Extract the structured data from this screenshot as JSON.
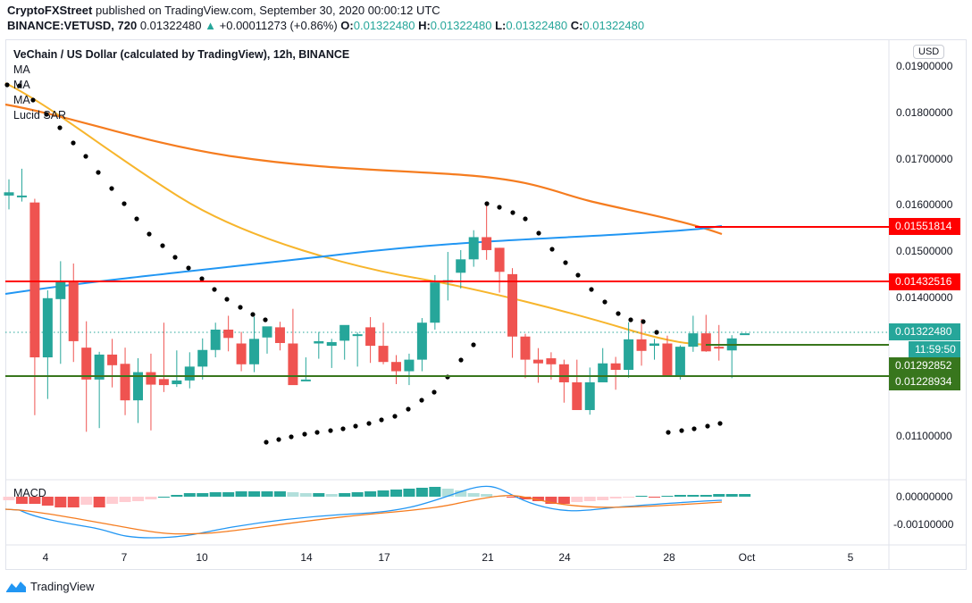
{
  "header": {
    "publisher": "CryptoFXStreet",
    "published_text": "published on TradingView.com, September 30, 2020 00:00:12 UTC",
    "symbol": "BINANCE:VETUSD, 720",
    "last_price": "0.01322480",
    "change": "+0.00011273 (+0.86%)",
    "ohlc": {
      "o_label": "O:",
      "o": "0.01322480",
      "h_label": "H:",
      "h": "0.01322480",
      "l_label": "L:",
      "l": "0.01322480",
      "c_label": "C:",
      "c": "0.01322480"
    }
  },
  "legend": {
    "title": "VeChain / US Dollar (calculated by TradingView), 12h, BINANCE",
    "indicators": [
      "MA",
      "MA",
      "MA",
      "Lucid SAR"
    ]
  },
  "price_axis": {
    "currency": "USD",
    "ticks": [
      "0.01900000",
      "0.01800000",
      "0.01700000",
      "0.01600000",
      "0.01500000",
      "0.01400000",
      "0.01100000"
    ],
    "tags": [
      {
        "label": "0.01551814",
        "color": "#ff0000",
        "kind": "resistance"
      },
      {
        "label": "0.01432516",
        "color": "#ff0000",
        "kind": "resistance"
      },
      {
        "label": "0.01322480",
        "color": "#26a69a",
        "kind": "last-price"
      },
      {
        "label": "11:59:50",
        "color": "#26a69a",
        "kind": "countdown"
      },
      {
        "label": "0.01292852",
        "color": "#38761d",
        "kind": "support"
      },
      {
        "label": "0.01228934",
        "color": "#38761d",
        "kind": "support"
      }
    ]
  },
  "macd_axis": {
    "label": "MACD",
    "ticks": [
      "0.00000000",
      "-0.00100000"
    ]
  },
  "time_axis": {
    "ticks": [
      "4",
      "7",
      "10",
      "14",
      "17",
      "21",
      "24",
      "28",
      "Oct",
      "5"
    ]
  },
  "footer": {
    "brand": "TradingView"
  },
  "colors": {
    "up": "#26a69a",
    "down": "#ef5350",
    "ma_fast": "#f7b52c",
    "ma_slow": "#f57c1f",
    "ma_long": "#2196f3",
    "resistance": "#ff0000",
    "support": "#38761d",
    "sar": "#000000"
  },
  "chart_data": {
    "type": "candlestick",
    "title": "VeChain / US Dollar (calculated by TradingView), 12h, BINANCE",
    "xlabel": "",
    "ylabel": "USD",
    "ylim": [
      0.0105,
      0.0195
    ],
    "x_ticks": [
      "4",
      "7",
      "10",
      "14",
      "17",
      "21",
      "24",
      "28",
      "Oct",
      "5"
    ],
    "candles": [
      {
        "o": 0.0162,
        "h": 0.01655,
        "l": 0.0159,
        "c": 0.01627
      },
      {
        "o": 0.0162,
        "h": 0.01678,
        "l": 0.01607,
        "c": 0.0162
      },
      {
        "o": 0.01605,
        "h": 0.01613,
        "l": 0.01145,
        "c": 0.0127
      },
      {
        "o": 0.0127,
        "h": 0.01415,
        "l": 0.0118,
        "c": 0.01398
      },
      {
        "o": 0.01396,
        "h": 0.01478,
        "l": 0.01256,
        "c": 0.01433
      },
      {
        "o": 0.01433,
        "h": 0.01473,
        "l": 0.0126,
        "c": 0.01305
      },
      {
        "o": 0.01291,
        "h": 0.01348,
        "l": 0.01109,
        "c": 0.01222
      },
      {
        "o": 0.01222,
        "h": 0.01282,
        "l": 0.01117,
        "c": 0.01276
      },
      {
        "o": 0.01276,
        "h": 0.0131,
        "l": 0.01205,
        "c": 0.01253
      },
      {
        "o": 0.01256,
        "h": 0.01291,
        "l": 0.01145,
        "c": 0.01177
      },
      {
        "o": 0.01177,
        "h": 0.01268,
        "l": 0.01128,
        "c": 0.01238
      },
      {
        "o": 0.01238,
        "h": 0.01278,
        "l": 0.01112,
        "c": 0.01211
      },
      {
        "o": 0.01223,
        "h": 0.01345,
        "l": 0.01195,
        "c": 0.0121
      },
      {
        "o": 0.01212,
        "h": 0.01285,
        "l": 0.01206,
        "c": 0.0122
      },
      {
        "o": 0.0122,
        "h": 0.01281,
        "l": 0.01203,
        "c": 0.0125
      },
      {
        "o": 0.0125,
        "h": 0.01311,
        "l": 0.01222,
        "c": 0.01286
      },
      {
        "o": 0.01286,
        "h": 0.01345,
        "l": 0.0127,
        "c": 0.0133
      },
      {
        "o": 0.0133,
        "h": 0.0136,
        "l": 0.01283,
        "c": 0.01312
      },
      {
        "o": 0.013,
        "h": 0.01325,
        "l": 0.0124,
        "c": 0.01255
      },
      {
        "o": 0.01255,
        "h": 0.01358,
        "l": 0.01238,
        "c": 0.0131
      },
      {
        "o": 0.01313,
        "h": 0.01328,
        "l": 0.01278,
        "c": 0.01337
      },
      {
        "o": 0.01335,
        "h": 0.01347,
        "l": 0.01285,
        "c": 0.01301
      },
      {
        "o": 0.013,
        "h": 0.01375,
        "l": 0.01244,
        "c": 0.0121
      },
      {
        "o": 0.0122,
        "h": 0.0127,
        "l": 0.01222,
        "c": 0.01222
      },
      {
        "o": 0.013,
        "h": 0.01325,
        "l": 0.01267,
        "c": 0.01305
      },
      {
        "o": 0.01295,
        "h": 0.0131,
        "l": 0.01247,
        "c": 0.01303
      },
      {
        "o": 0.01306,
        "h": 0.01328,
        "l": 0.01265,
        "c": 0.0134
      },
      {
        "o": 0.0132,
        "h": 0.01324,
        "l": 0.0125,
        "c": 0.0132
      },
      {
        "o": 0.01335,
        "h": 0.01357,
        "l": 0.01258,
        "c": 0.01295
      },
      {
        "o": 0.01295,
        "h": 0.01345,
        "l": 0.01255,
        "c": 0.0126
      },
      {
        "o": 0.0126,
        "h": 0.01275,
        "l": 0.01212,
        "c": 0.0124
      },
      {
        "o": 0.0124,
        "h": 0.01278,
        "l": 0.0121,
        "c": 0.01265
      },
      {
        "o": 0.01265,
        "h": 0.01355,
        "l": 0.0124,
        "c": 0.01345
      },
      {
        "o": 0.01345,
        "h": 0.01448,
        "l": 0.0133,
        "c": 0.01432
      },
      {
        "o": 0.01432,
        "h": 0.01498,
        "l": 0.01393,
        "c": 0.01437
      },
      {
        "o": 0.01453,
        "h": 0.01502,
        "l": 0.01419,
        "c": 0.01482
      },
      {
        "o": 0.01482,
        "h": 0.01545,
        "l": 0.01466,
        "c": 0.0153
      },
      {
        "o": 0.0153,
        "h": 0.01602,
        "l": 0.01481,
        "c": 0.01502
      },
      {
        "o": 0.01507,
        "h": 0.01507,
        "l": 0.0141,
        "c": 0.01455
      },
      {
        "o": 0.0145,
        "h": 0.01463,
        "l": 0.01269,
        "c": 0.01315
      },
      {
        "o": 0.01315,
        "h": 0.01321,
        "l": 0.01225,
        "c": 0.01265
      },
      {
        "o": 0.01265,
        "h": 0.0129,
        "l": 0.01215,
        "c": 0.01257
      },
      {
        "o": 0.01268,
        "h": 0.01281,
        "l": 0.01222,
        "c": 0.01255
      },
      {
        "o": 0.01255,
        "h": 0.01265,
        "l": 0.01172,
        "c": 0.01216
      },
      {
        "o": 0.01216,
        "h": 0.01265,
        "l": 0.01158,
        "c": 0.01156
      },
      {
        "o": 0.01156,
        "h": 0.01248,
        "l": 0.01146,
        "c": 0.01216
      },
      {
        "o": 0.01216,
        "h": 0.0129,
        "l": 0.01218,
        "c": 0.01257
      },
      {
        "o": 0.01257,
        "h": 0.01271,
        "l": 0.012,
        "c": 0.01243
      },
      {
        "o": 0.01243,
        "h": 0.01346,
        "l": 0.01226,
        "c": 0.01309
      },
      {
        "o": 0.01309,
        "h": 0.01353,
        "l": 0.01252,
        "c": 0.01284
      },
      {
        "o": 0.01295,
        "h": 0.0131,
        "l": 0.01265,
        "c": 0.013
      },
      {
        "o": 0.013,
        "h": 0.01317,
        "l": 0.01236,
        "c": 0.01228
      },
      {
        "o": 0.01228,
        "h": 0.01296,
        "l": 0.01222,
        "c": 0.01293
      },
      {
        "o": 0.01293,
        "h": 0.0136,
        "l": 0.01282,
        "c": 0.01322
      },
      {
        "o": 0.01322,
        "h": 0.01362,
        "l": 0.01282,
        "c": 0.01283
      },
      {
        "o": 0.01293,
        "h": 0.0134,
        "l": 0.01263,
        "c": 0.01289
      },
      {
        "o": 0.01285,
        "h": 0.01318,
        "l": 0.01225,
        "c": 0.01311
      },
      {
        "o": 0.01322,
        "h": 0.01322,
        "l": 0.01322,
        "c": 0.01322
      }
    ],
    "horizontal_lines": [
      {
        "value": 0.01551814,
        "color": "#ff0000",
        "label": "resistance"
      },
      {
        "value": 0.01432516,
        "color": "#ff0000",
        "label": "resistance"
      },
      {
        "value": 0.01292852,
        "color": "#38761d",
        "label": "support"
      },
      {
        "value": 0.01228934,
        "color": "#38761d",
        "label": "support"
      }
    ],
    "series": [
      {
        "name": "MA (fast, yellow)",
        "start": 0.01858,
        "end": 0.01293
      },
      {
        "name": "MA (slow, orange)",
        "start": 0.01822,
        "end": 0.0154
      },
      {
        "name": "MA (long, blue)",
        "start": 0.01405,
        "end": 0.01552
      }
    ],
    "macd": {
      "ylim": [
        -0.0015,
        0.0003
      ],
      "ticks": [
        "0.00000000",
        "-0.00100000"
      ],
      "lines": [
        "MACD (blue)",
        "Signal (orange)"
      ],
      "histogram": "red/pink negative bars early, teal positive bars mid, negative again around 21-24, small positive near end"
    }
  }
}
